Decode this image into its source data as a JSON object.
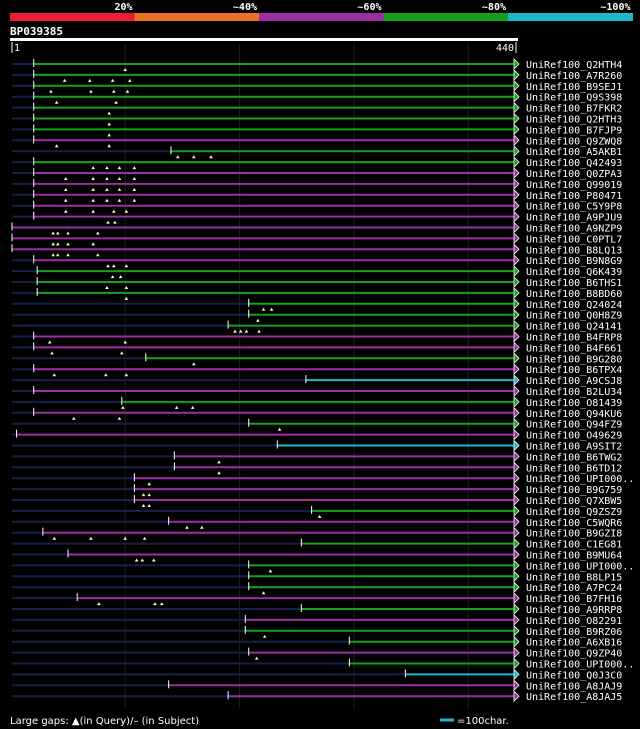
{
  "chart_data": {
    "type": "alignment-overview",
    "query_id": "BP039385",
    "query_length": 440,
    "axis": {
      "start_label": "1",
      "end_label": "440"
    },
    "identity_legend": [
      {
        "label": "20%",
        "color": "#ed1c2e"
      },
      {
        "label": "~40%",
        "color": "#e8721f"
      },
      {
        "label": "~60%",
        "color": "#9a2ea2"
      },
      {
        "label": "~80%",
        "color": "#16a01b"
      },
      {
        "label": "~100%",
        "color": "#19b9c7"
      }
    ],
    "hits": [
      {
        "name": "UniRef100_Q2HTH4",
        "start": 20,
        "end": 440,
        "color": "#16a01b",
        "gaps": [
          100
        ]
      },
      {
        "name": "UniRef100_A7R260",
        "start": 20,
        "end": 440,
        "color": "#16a01b",
        "gaps": [
          47,
          69,
          89,
          104
        ]
      },
      {
        "name": "UniRef100_B9SEJ1",
        "start": 20,
        "end": 440,
        "color": "#16a01b",
        "gaps": [
          35,
          70,
          90,
          102
        ]
      },
      {
        "name": "UniRef100_Q9S398",
        "start": 20,
        "end": 440,
        "color": "#16a01b",
        "gaps": [
          40,
          92
        ]
      },
      {
        "name": "UniRef100_B7FKR2",
        "start": 20,
        "end": 440,
        "color": "#16a01b",
        "gaps": [
          86
        ]
      },
      {
        "name": "UniRef100_Q2HTH3",
        "start": 20,
        "end": 440,
        "color": "#16a01b",
        "gaps": [
          86
        ]
      },
      {
        "name": "UniRef100_B7FJP9",
        "start": 20,
        "end": 440,
        "color": "#16a01b",
        "gaps": [
          86
        ]
      },
      {
        "name": "UniRef100_Q9ZWQ8",
        "start": 20,
        "end": 440,
        "color": "#9a2ea2",
        "gaps": [
          40,
          86
        ]
      },
      {
        "name": "UniRef100_A5AKB1",
        "start": 140,
        "end": 440,
        "color": "#16a01b",
        "gaps": [
          146,
          160,
          175
        ]
      },
      {
        "name": "UniRef100_Q42493",
        "start": 20,
        "end": 440,
        "color": "#16a01b",
        "gaps": [
          72,
          84,
          95,
          108
        ]
      },
      {
        "name": "UniRef100_Q0ZPA3",
        "start": 20,
        "end": 440,
        "color": "#9a2ea2",
        "gaps": [
          48,
          72,
          84,
          95,
          108
        ]
      },
      {
        "name": "UniRef100_Q99019",
        "start": 20,
        "end": 440,
        "color": "#9a2ea2",
        "gaps": [
          48,
          72,
          84,
          95,
          108
        ]
      },
      {
        "name": "UniRef100_P80471",
        "start": 20,
        "end": 440,
        "color": "#9a2ea2",
        "gaps": [
          48,
          72,
          84,
          95,
          108
        ]
      },
      {
        "name": "UniRef100_C5Y9P8",
        "start": 20,
        "end": 440,
        "color": "#9a2ea2",
        "gaps": [
          48,
          72,
          90,
          101
        ]
      },
      {
        "name": "UniRef100_A9PJU9",
        "start": 20,
        "end": 440,
        "color": "#9a2ea2",
        "gaps": [
          85,
          91
        ]
      },
      {
        "name": "UniRef100_A9NZP9",
        "start": 1,
        "end": 440,
        "color": "#9a2ea2",
        "gaps": [
          37,
          41,
          50,
          76
        ]
      },
      {
        "name": "UniRef100_C0PTL7",
        "start": 1,
        "end": 440,
        "color": "#9a2ea2",
        "gaps": [
          37,
          41,
          50,
          72
        ]
      },
      {
        "name": "UniRef100_B8LQ13",
        "start": 1,
        "end": 440,
        "color": "#9a2ea2",
        "gaps": [
          37,
          41,
          50,
          76
        ]
      },
      {
        "name": "UniRef100_B9N8G9",
        "start": 20,
        "end": 440,
        "color": "#9a2ea2",
        "gaps": [
          85,
          90,
          101
        ]
      },
      {
        "name": "UniRef100_Q6K439",
        "start": 23,
        "end": 440,
        "color": "#16a01b",
        "gaps": [
          89,
          96
        ]
      },
      {
        "name": "UniRef100_B6THS1",
        "start": 23,
        "end": 440,
        "color": "#16a01b",
        "gaps": [
          84,
          101
        ]
      },
      {
        "name": "UniRef100_B8BD60",
        "start": 23,
        "end": 440,
        "color": "#16a01b",
        "gaps": [
          101
        ]
      },
      {
        "name": "UniRef100_Q24024",
        "start": 208,
        "end": 440,
        "color": "#16a01b",
        "gaps": [
          221,
          228
        ]
      },
      {
        "name": "UniRef100_Q0H8Z9",
        "start": 208,
        "end": 440,
        "color": "#16a01b",
        "gaps": [
          216
        ]
      },
      {
        "name": "UniRef100_Q24141",
        "start": 190,
        "end": 440,
        "color": "#16a01b",
        "gaps": [
          196,
          201,
          206,
          217
        ]
      },
      {
        "name": "UniRef100_B4FRP8",
        "start": 20,
        "end": 440,
        "color": "#9a2ea2",
        "gaps": [
          34,
          100
        ]
      },
      {
        "name": "UniRef100_B4F661",
        "start": 20,
        "end": 440,
        "color": "#9a2ea2",
        "gaps": [
          36,
          97
        ]
      },
      {
        "name": "UniRef100_B9G280",
        "start": 118,
        "end": 440,
        "color": "#16a01b",
        "gaps": [
          160
        ]
      },
      {
        "name": "UniRef100_B6TPX4",
        "start": 20,
        "end": 440,
        "color": "#9a2ea2",
        "gaps": [
          38,
          83,
          101
        ]
      },
      {
        "name": "UniRef100_A9CSJ8",
        "start": 258,
        "end": 440,
        "color": "#19b9c7",
        "gaps": []
      },
      {
        "name": "UniRef100_B2LU34",
        "start": 20,
        "end": 440,
        "color": "#9a2ea2",
        "gaps": []
      },
      {
        "name": "UniRef100_O81439",
        "start": 97,
        "end": 440,
        "color": "#16a01b",
        "gaps": [
          98,
          145,
          159
        ]
      },
      {
        "name": "UniRef100_Q94KU6",
        "start": 20,
        "end": 440,
        "color": "#9a2ea2",
        "gaps": [
          55,
          95
        ]
      },
      {
        "name": "UniRef100_Q94FZ9",
        "start": 208,
        "end": 440,
        "color": "#16a01b",
        "gaps": [
          235
        ]
      },
      {
        "name": "UniRef100_O49629",
        "start": 5,
        "end": 440,
        "color": "#9a2ea2",
        "gaps": []
      },
      {
        "name": "UniRef100_A9SIT2",
        "start": 233,
        "end": 440,
        "color": "#19b9c7",
        "gaps": []
      },
      {
        "name": "UniRef100_B6TWG2",
        "start": 143,
        "end": 440,
        "color": "#9a2ea2",
        "gaps": [
          182
        ]
      },
      {
        "name": "UniRef100_B6TD12",
        "start": 143,
        "end": 440,
        "color": "#9a2ea2",
        "gaps": [
          182
        ]
      },
      {
        "name": "UniRef100_UPI000..",
        "start": 108,
        "end": 440,
        "color": "#9a2ea2",
        "gaps": [
          121
        ]
      },
      {
        "name": "UniRef100_B9G759",
        "start": 108,
        "end": 440,
        "color": "#9a2ea2",
        "gaps": [
          116,
          121
        ]
      },
      {
        "name": "UniRef100_Q7XBW5",
        "start": 108,
        "end": 440,
        "color": "#9a2ea2",
        "gaps": [
          116,
          121
        ]
      },
      {
        "name": "UniRef100_Q9ZSZ9",
        "start": 263,
        "end": 440,
        "color": "#16a01b",
        "gaps": [
          270
        ]
      },
      {
        "name": "UniRef100_C5WQR6",
        "start": 138,
        "end": 440,
        "color": "#9a2ea2",
        "gaps": [
          154,
          167
        ]
      },
      {
        "name": "UniRef100_B9GZI8",
        "start": 28,
        "end": 440,
        "color": "#9a2ea2",
        "gaps": [
          38,
          70,
          100,
          117
        ]
      },
      {
        "name": "UniRef100_C1EG81",
        "start": 254,
        "end": 440,
        "color": "#16a01b",
        "gaps": []
      },
      {
        "name": "UniRef100_B9MU64",
        "start": 50,
        "end": 440,
        "color": "#9a2ea2",
        "gaps": [
          110,
          115,
          125
        ]
      },
      {
        "name": "UniRef100_UPI000..",
        "start": 208,
        "end": 440,
        "color": "#16a01b",
        "gaps": [
          227
        ]
      },
      {
        "name": "UniRef100_B8LP15",
        "start": 208,
        "end": 440,
        "color": "#16a01b",
        "gaps": []
      },
      {
        "name": "UniRef100_A7PC24",
        "start": 208,
        "end": 440,
        "color": "#16a01b",
        "gaps": [
          221
        ]
      },
      {
        "name": "UniRef100_B7FH16",
        "start": 58,
        "end": 440,
        "color": "#9a2ea2",
        "gaps": [
          77,
          126,
          132
        ]
      },
      {
        "name": "UniRef100_A9RRP8",
        "start": 254,
        "end": 440,
        "color": "#16a01b",
        "gaps": []
      },
      {
        "name": "UniRef100_O82291",
        "start": 205,
        "end": 440,
        "color": "#9a2ea2",
        "gaps": []
      },
      {
        "name": "UniRef100_B9RZ06",
        "start": 205,
        "end": 440,
        "color": "#16a01b",
        "gaps": [
          222
        ]
      },
      {
        "name": "UniRef100_A6XB16",
        "start": 296,
        "end": 440,
        "color": "#16a01b",
        "gaps": []
      },
      {
        "name": "UniRef100_Q9ZP40",
        "start": 208,
        "end": 440,
        "color": "#9a2ea2",
        "gaps": [
          215
        ]
      },
      {
        "name": "UniRef100_UPI000..",
        "start": 296,
        "end": 440,
        "color": "#16a01b",
        "gaps": []
      },
      {
        "name": "UniRef100_Q0J3C0",
        "start": 345,
        "end": 440,
        "color": "#19b9c7",
        "gaps": []
      },
      {
        "name": "UniRef100_A8JAJ9",
        "start": 138,
        "end": 440,
        "color": "#9a2ea2",
        "gaps": []
      },
      {
        "name": "UniRef100_A8JAJ5",
        "start": 190,
        "end": 440,
        "color": "#9a2ea2",
        "gaps": []
      }
    ],
    "footer": {
      "gap_legend": "Large gaps: ▲(in Query)/– (in Subject)",
      "scale_legend": "=100char."
    }
  }
}
